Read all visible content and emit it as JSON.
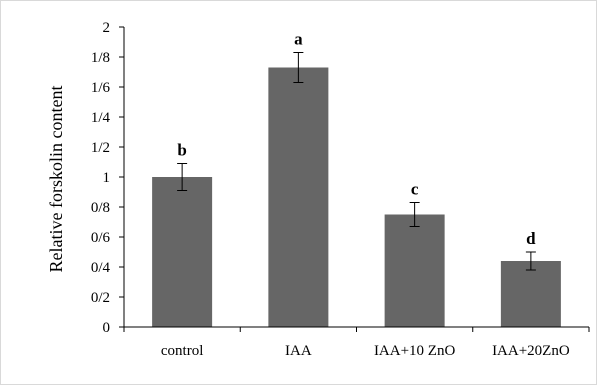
{
  "chart_data": {
    "type": "bar",
    "title": "",
    "xlabel": "",
    "ylabel": "Relative forskolin content",
    "ylim": [
      0,
      2
    ],
    "ytick_values": [
      0,
      0.2,
      0.4,
      0.6,
      0.8,
      1,
      1.2,
      1.4,
      1.6,
      1.8,
      2
    ],
    "ytick_labels": [
      "0",
      "0/2",
      "0/4",
      "0/6",
      "0/8",
      "1",
      "1/2",
      "1/4",
      "1/6",
      "1/8",
      "2"
    ],
    "categories": [
      "control",
      "IAA",
      "IAA+10 ZnO",
      "IAA+20ZnO"
    ],
    "values": [
      1.0,
      1.73,
      0.75,
      0.44
    ],
    "errors": [
      0.09,
      0.1,
      0.08,
      0.06
    ],
    "significance_labels": [
      "b",
      "a",
      "c",
      "d"
    ],
    "bar_color": "#666666",
    "grid": false,
    "legend": "none"
  }
}
